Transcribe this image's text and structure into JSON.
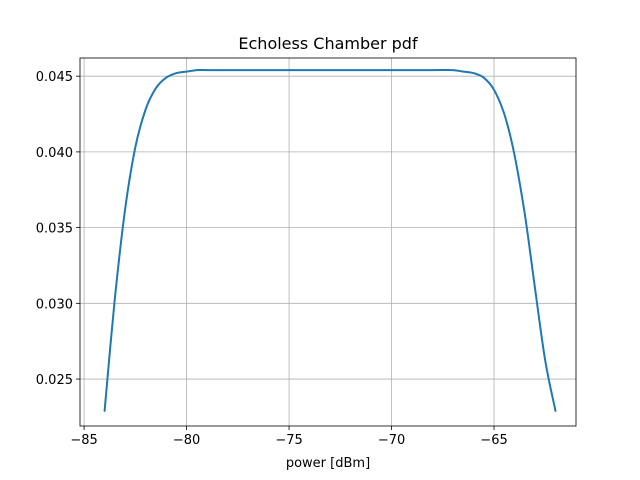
{
  "chart_data": {
    "type": "line",
    "title": "Echoless Chamber pdf",
    "xlabel": "power [dBm]",
    "ylabel": "",
    "xlim": [
      -85.2,
      -61.0
    ],
    "ylim": [
      0.0219,
      0.0462
    ],
    "xticks": [
      {
        "value": -85,
        "label": "−85"
      },
      {
        "value": -80,
        "label": "−80"
      },
      {
        "value": -75,
        "label": "−75"
      },
      {
        "value": -70,
        "label": "−70"
      },
      {
        "value": -65,
        "label": "−65"
      }
    ],
    "yticks": [
      {
        "value": 0.025,
        "label": "0.025"
      },
      {
        "value": 0.03,
        "label": "0.030"
      },
      {
        "value": 0.035,
        "label": "0.035"
      },
      {
        "value": 0.04,
        "label": "0.040"
      },
      {
        "value": 0.045,
        "label": "0.045"
      }
    ],
    "grid": true,
    "series": [
      {
        "color": "#1f77b4",
        "x": [
          -84.0,
          -83.5,
          -83.0,
          -82.5,
          -82.0,
          -81.5,
          -81.0,
          -80.5,
          -80.0,
          -79.5,
          -79.0,
          -78.0,
          -76.0,
          -74.0,
          -72.0,
          -70.0,
          -68.0,
          -67.0,
          -66.5,
          -66.0,
          -65.5,
          -65.0,
          -64.5,
          -64.0,
          -63.5,
          -63.0,
          -62.5,
          -62.0
        ],
        "y": [
          0.0229,
          0.0303,
          0.0362,
          0.0403,
          0.0428,
          0.0442,
          0.0449,
          0.0452,
          0.0453,
          0.0454,
          0.0454,
          0.0454,
          0.0454,
          0.0454,
          0.0454,
          0.0454,
          0.0454,
          0.0454,
          0.0453,
          0.0452,
          0.0449,
          0.0441,
          0.0425,
          0.0398,
          0.0359,
          0.031,
          0.0262,
          0.0229
        ]
      }
    ]
  }
}
